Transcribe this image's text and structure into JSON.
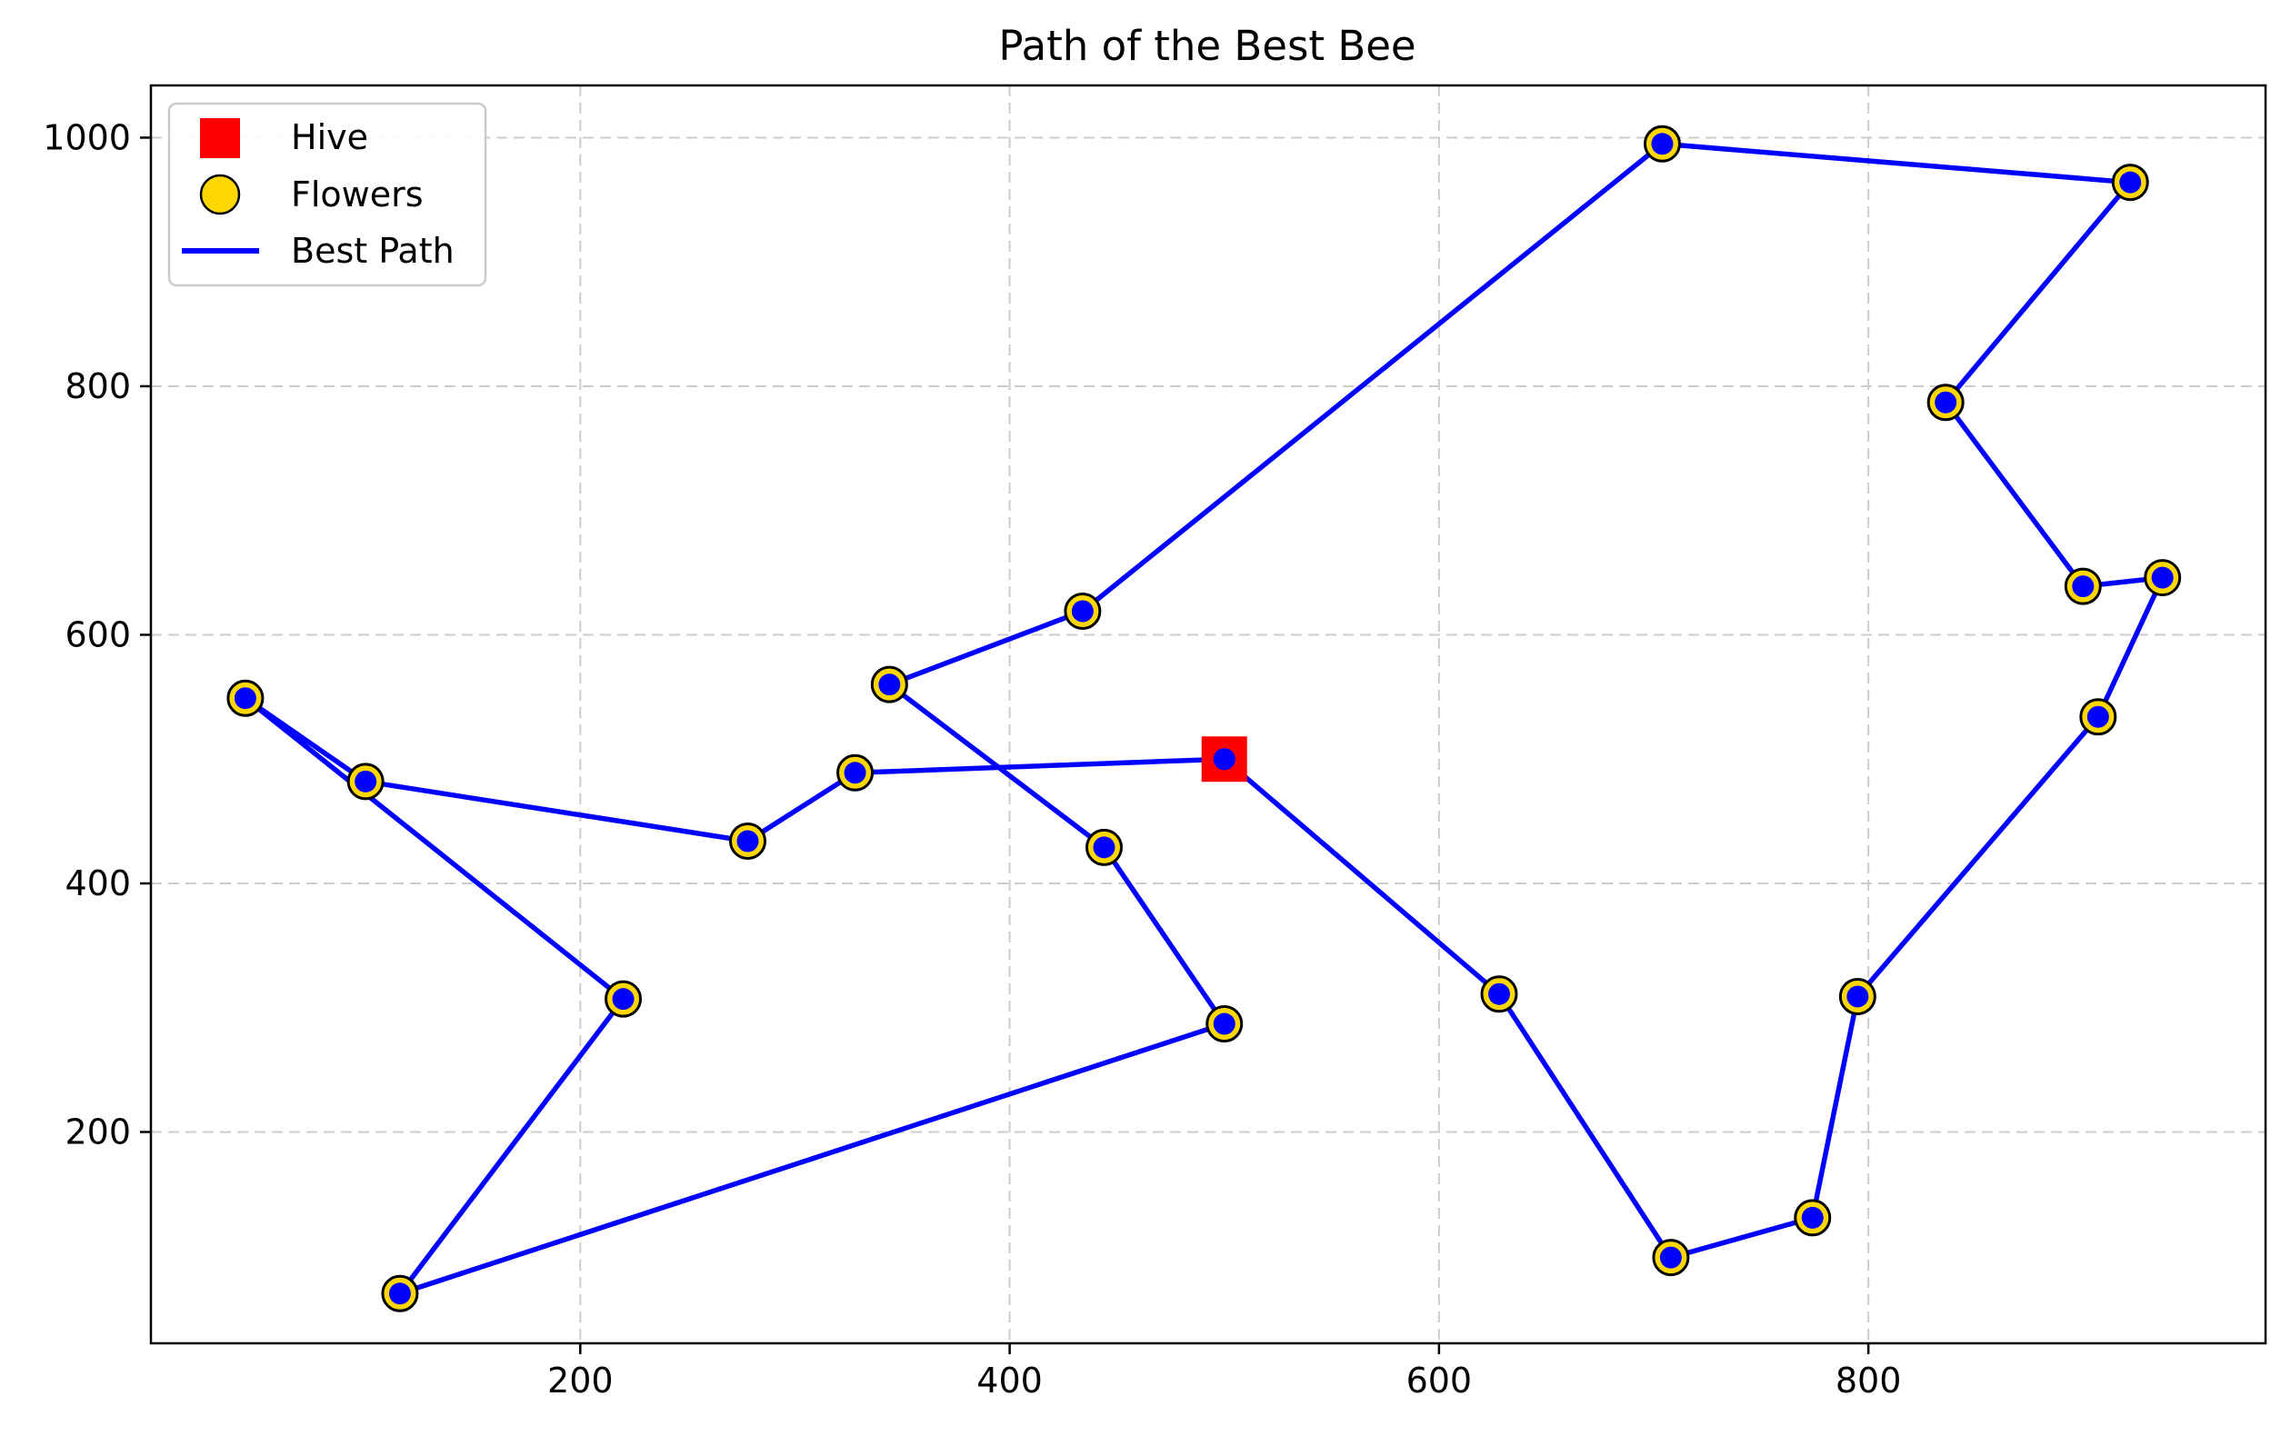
{
  "chart_data": {
    "type": "scatter",
    "title": "Path of the Best Bee",
    "xlabel": "",
    "ylabel": "",
    "xlim": [
      0,
      985
    ],
    "ylim": [
      30,
      1042
    ],
    "xticks": [
      200,
      400,
      600,
      800
    ],
    "yticks": [
      200,
      400,
      600,
      800,
      1000
    ],
    "grid": true,
    "legend_position": "top-left",
    "colors": {
      "hive": "#ff0000",
      "flower_fill": "#ffd700",
      "flower_edge": "#000000",
      "path": "#0000ff",
      "grid": "#cccccc"
    },
    "hive": {
      "name": "Hive",
      "x": 500,
      "y": 500
    },
    "flowers": {
      "name": "Flowers",
      "points": [
        [
          704,
          995
        ],
        [
          922,
          964
        ],
        [
          836,
          787
        ],
        [
          900,
          639
        ],
        [
          937,
          646
        ],
        [
          907,
          534
        ],
        [
          795,
          309
        ],
        [
          774,
          131
        ],
        [
          708,
          99
        ],
        [
          628,
          311
        ],
        [
          500,
          287
        ],
        [
          444,
          429
        ],
        [
          344,
          560
        ],
        [
          434,
          619
        ],
        [
          44,
          549
        ],
        [
          100,
          482
        ],
        [
          220,
          307
        ],
        [
          116,
          70
        ],
        [
          278,
          434
        ],
        [
          328,
          489
        ]
      ]
    },
    "best_path": {
      "name": "Best Path",
      "x": [
        500,
        628,
        708,
        774,
        795,
        907,
        937,
        900,
        836,
        922,
        704,
        434,
        344,
        444,
        500,
        116,
        220,
        44,
        100,
        278,
        328,
        500
      ],
      "y": [
        500,
        311,
        99,
        131,
        309,
        534,
        646,
        639,
        787,
        964,
        995,
        619,
        560,
        429,
        287,
        70,
        307,
        549,
        482,
        434,
        489,
        500
      ]
    },
    "legend": [
      "Hive",
      "Flowers",
      "Best Path"
    ]
  }
}
